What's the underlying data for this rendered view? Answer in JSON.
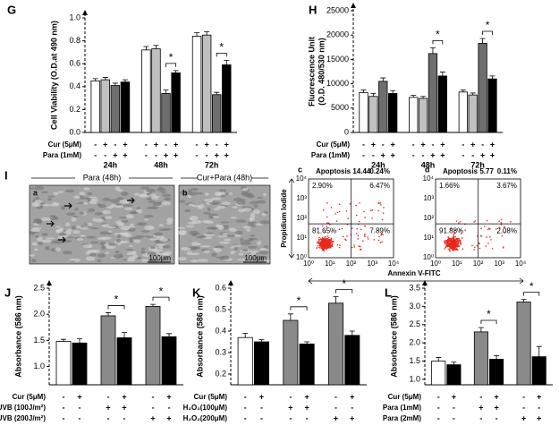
{
  "chart_data": [
    {
      "type": "grouped_bar",
      "label": "G",
      "ylabel": "Cell Viability (O.D.at 490 nm)",
      "categories": [
        "24h",
        "48h",
        "72h"
      ],
      "series": [
        {
          "color": "#ffffff",
          "values": [
            0.45,
            0.72,
            0.84
          ],
          "errors": [
            0.02,
            0.03,
            0.03
          ]
        },
        {
          "color": "#c0c0c0",
          "values": [
            0.46,
            0.73,
            0.85
          ],
          "errors": [
            0.02,
            0.03,
            0.03
          ]
        },
        {
          "color": "#6e6e6e",
          "values": [
            0.41,
            0.34,
            0.33
          ],
          "errors": [
            0.02,
            0.03,
            0.02
          ]
        },
        {
          "color": "#000000",
          "values": [
            0.44,
            0.52,
            0.59
          ],
          "errors": [
            0.02,
            0.02,
            0.04
          ]
        }
      ],
      "ylim": [
        0,
        1
      ],
      "yticks": [
        {
          "value": 0,
          "label": "0.0"
        },
        0.2,
        0.4,
        0.6,
        0.8,
        {
          "value": 1,
          "label": "1.0"
        }
      ],
      "treatments": [
        {
          "label": "Cur (5μM)",
          "signs": [
            "-",
            "+",
            "-",
            "+",
            "-",
            "+",
            "-",
            "+",
            "-",
            "+",
            "-",
            "+"
          ]
        },
        {
          "label": "Para (1mM)",
          "signs": [
            "-",
            "-",
            "+",
            "+",
            "-",
            "-",
            "+",
            "+",
            "-",
            "-",
            "+",
            "+"
          ]
        }
      ],
      "significance": [
        null,
        "*",
        "*"
      ]
    },
    {
      "type": "grouped_bar",
      "label": "H",
      "ylabel": [
        "Fluorescence Unit",
        "(O.D. 480/530 nm)"
      ],
      "categories": [
        "24h",
        "48h",
        "72h"
      ],
      "series": [
        {
          "color": "#ffffff",
          "values": [
            8200,
            7200,
            8300
          ],
          "errors": [
            500,
            400,
            400
          ]
        },
        {
          "color": "#c0c0c0",
          "values": [
            7400,
            7000,
            7700
          ],
          "errors": [
            600,
            400,
            400
          ]
        },
        {
          "color": "#6e6e6e",
          "values": [
            10500,
            16200,
            18300
          ],
          "errors": [
            700,
            1200,
            1000
          ]
        },
        {
          "color": "#000000",
          "values": [
            8000,
            11600,
            11000
          ],
          "errors": [
            600,
            800,
            600
          ]
        }
      ],
      "ylim": [
        0,
        25000
      ],
      "yticks": [
        0,
        5000,
        10000,
        15000,
        20000,
        25000
      ],
      "treatments": [
        {
          "label": "Cur (5μM)",
          "signs": [
            "-",
            "+",
            "-",
            "+",
            "-",
            "+",
            "-",
            "+",
            "-",
            "+",
            "-",
            "+"
          ]
        },
        {
          "label": "Para (1mM)",
          "signs": [
            "-",
            "-",
            "+",
            "+",
            "-",
            "-",
            "+",
            "+",
            "-",
            "-",
            "+",
            "+"
          ]
        }
      ],
      "significance": [
        null,
        "*",
        "*"
      ]
    },
    {
      "type": "bar",
      "label": "J",
      "ylabel": "Absorbance (586 nm)",
      "values": [
        1.48,
        1.45,
        1.97,
        1.55,
        2.15,
        1.57
      ],
      "errors": [
        0.04,
        0.08,
        0.06,
        0.1,
        0.04,
        0.06
      ],
      "colors": [
        "#ffffff",
        "#000000",
        "#8a8a8a",
        "#000000",
        "#8a8a8a",
        "#000000"
      ],
      "ylim": [
        0.65,
        2.5
      ],
      "yticks": [
        {
          "value": 1,
          "label": "1.0"
        },
        1.5,
        {
          "value": 2,
          "label": "2.0"
        },
        2.5
      ],
      "treatments": [
        {
          "label": "Cur (5μM)",
          "signs": [
            "-",
            "+",
            "-",
            "+",
            "-",
            "+"
          ]
        },
        {
          "label": "UVB (100J/m²)",
          "signs": [
            "-",
            "-",
            "+",
            "+",
            "-",
            "-"
          ]
        },
        {
          "label": "UVB (200J/m²)",
          "signs": [
            "-",
            "-",
            "-",
            "-",
            "+",
            "+"
          ]
        }
      ],
      "significance": [
        null,
        null,
        null,
        "*",
        null,
        "*"
      ]
    },
    {
      "type": "bar",
      "label": "K",
      "ylabel": "Absorbance (586 nm)",
      "values": [
        0.37,
        0.35,
        0.45,
        0.34,
        0.53,
        0.38
      ],
      "errors": [
        0.02,
        0.01,
        0.03,
        0.01,
        0.03,
        0.02
      ],
      "colors": [
        "#ffffff",
        "#000000",
        "#8a8a8a",
        "#000000",
        "#8a8a8a",
        "#000000"
      ],
      "ylim": [
        0.15,
        0.6
      ],
      "yticks": [
        0.2,
        0.3,
        0.4,
        0.5,
        0.6
      ],
      "treatments": [
        {
          "label": "Cur (5μM)",
          "signs": [
            "-",
            "+",
            "-",
            "+",
            "-",
            "+"
          ]
        },
        {
          "label": "H₂O₂(100μM)",
          "signs": [
            "-",
            "-",
            "+",
            "+",
            "-",
            "-"
          ]
        },
        {
          "label": "H₂O₂(200μM)",
          "signs": [
            "-",
            "-",
            "-",
            "-",
            "+",
            "+"
          ]
        }
      ],
      "significance": [
        null,
        null,
        null,
        "*",
        null,
        "*"
      ]
    },
    {
      "type": "bar",
      "label": "L",
      "ylabel": "Absorbance (586 nm)",
      "values": [
        1.5,
        1.4,
        2.3,
        1.55,
        3.12,
        1.62
      ],
      "errors": [
        0.1,
        0.07,
        0.12,
        0.1,
        0.07,
        0.28
      ],
      "colors": [
        "#ffffff",
        "#000000",
        "#8a8a8a",
        "#000000",
        "#8a8a8a",
        "#000000"
      ],
      "ylim": [
        0.85,
        3.5
      ],
      "yticks": [
        {
          "value": 1,
          "label": "1.0"
        },
        1.5,
        {
          "value": 2,
          "label": "2.0"
        },
        2.5,
        {
          "value": 3,
          "label": "3.0"
        },
        3.5
      ],
      "treatments": [
        {
          "label": "Cur (5μM)",
          "signs": [
            "-",
            "+",
            "-",
            "+",
            "-",
            "+"
          ]
        },
        {
          "label": "Para (1mM)",
          "signs": [
            "-",
            "-",
            "+",
            "+",
            "-",
            "-"
          ]
        },
        {
          "label": "Para (2mM)",
          "signs": [
            "-",
            "-",
            "-",
            "-",
            "+",
            "+"
          ]
        }
      ],
      "significance": [
        null,
        null,
        null,
        "*",
        null,
        "*"
      ]
    }
  ],
  "panel_i": {
    "letter": "I",
    "micrographs": [
      {
        "letter": "a",
        "title": "Para (48h)",
        "scale": "100μm"
      },
      {
        "letter": "b",
        "title": "Cur+Para (48h)",
        "scale": "100μm"
      }
    ],
    "flow_plots": [
      {
        "letter": "c",
        "title": "Apoptosis 14.44",
        "corner": "0.24%",
        "quadrants": [
          "2.90%",
          "6.47%",
          "81.65%",
          "7.89%"
        ]
      },
      {
        "letter": "d",
        "title": "Apoptosis 5.77",
        "corner": "0.11%",
        "quadrants": [
          "1.66%",
          "3.67%",
          "91.88%",
          "2.08%"
        ]
      }
    ],
    "ylabel": "Propidium Iodide",
    "xlabel": "Annexin V-FITC",
    "ticks": [
      "10⁰",
      "10¹",
      "10²",
      "10³",
      "10⁴"
    ]
  }
}
